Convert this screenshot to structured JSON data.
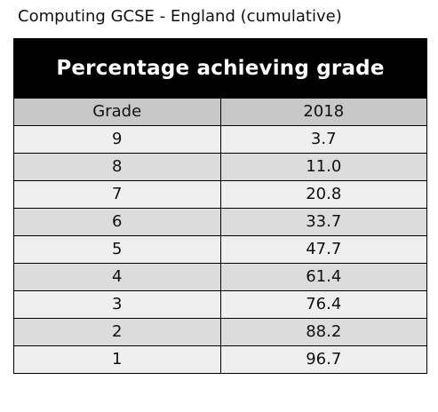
{
  "caption": "Computing GCSE - England (cumulative)",
  "chart_data": {
    "type": "table",
    "title": "Percentage achieving grade",
    "columns": [
      "Grade",
      "2018"
    ],
    "rows": [
      {
        "grade": "9",
        "value": "3.7"
      },
      {
        "grade": "8",
        "value": "11.0"
      },
      {
        "grade": "7",
        "value": "20.8"
      },
      {
        "grade": "6",
        "value": "33.7"
      },
      {
        "grade": "5",
        "value": "47.7"
      },
      {
        "grade": "4",
        "value": "61.4"
      },
      {
        "grade": "3",
        "value": "76.4"
      },
      {
        "grade": "2",
        "value": "88.2"
      },
      {
        "grade": "1",
        "value": "96.7"
      }
    ]
  }
}
